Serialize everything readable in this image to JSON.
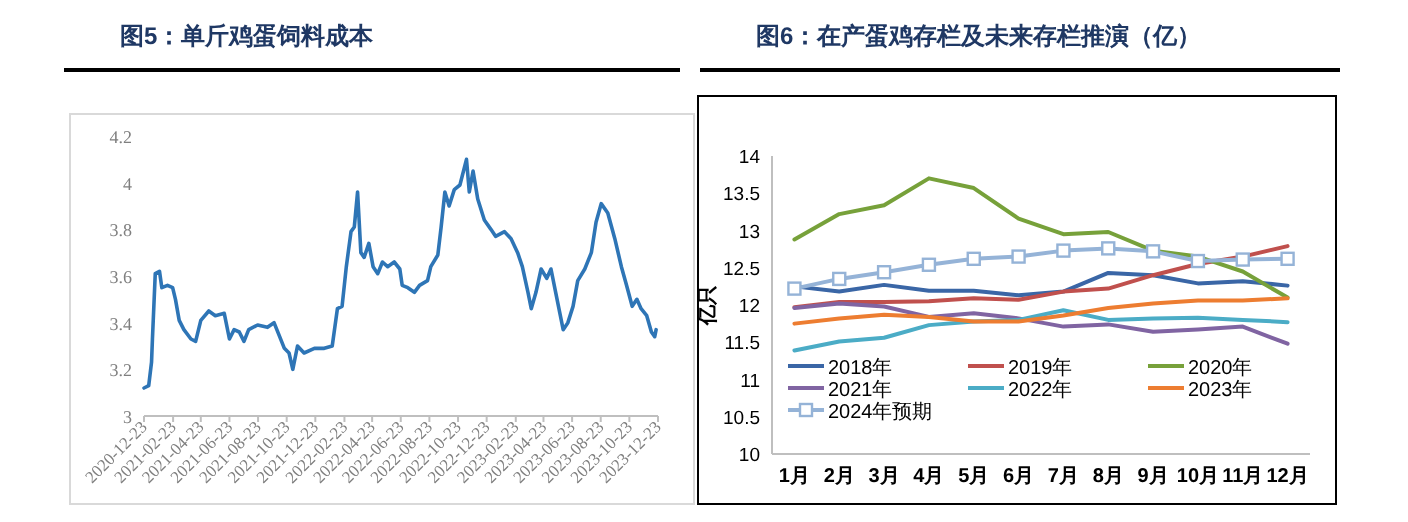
{
  "chart_data": [
    {
      "type": "line",
      "title": "图5：单斤鸡蛋饲料成本",
      "color": "#2e75b6",
      "x": [
        "2020-12-23",
        "2021-01-02",
        "2021-01-08",
        "2021-01-10",
        "2021-01-16",
        "2021-01-25",
        "2021-01-30",
        "2021-02-11",
        "2021-02-22",
        "2021-02-28",
        "2021-03-08",
        "2021-03-18",
        "2021-04-02",
        "2021-04-12",
        "2021-04-23",
        "2021-05-10",
        "2021-05-24",
        "2021-06-12",
        "2021-06-23",
        "2021-07-03",
        "2021-07-14",
        "2021-07-24",
        "2021-08-03",
        "2021-08-22",
        "2021-09-12",
        "2021-09-26",
        "2021-10-08",
        "2021-10-18",
        "2021-10-28",
        "2021-11-05",
        "2021-11-15",
        "2021-11-29",
        "2021-12-21",
        "2022-01-11",
        "2022-01-28",
        "2022-02-08",
        "2022-02-18",
        "2022-02-27",
        "2022-03-09",
        "2022-03-16",
        "2022-03-23",
        "2022-03-30",
        "2022-04-06",
        "2022-04-16",
        "2022-04-25",
        "2022-05-05",
        "2022-05-15",
        "2022-05-26",
        "2022-06-09",
        "2022-06-21",
        "2022-06-26",
        "2022-07-08",
        "2022-07-22",
        "2022-08-02",
        "2022-08-19",
        "2022-08-26",
        "2022-09-10",
        "2022-09-17",
        "2022-09-25",
        "2022-10-04",
        "2022-10-15",
        "2022-10-27",
        "2022-11-10",
        "2022-11-16",
        "2022-11-24",
        "2022-12-04",
        "2022-12-18",
        "2023-01-01",
        "2023-01-11",
        "2023-01-30",
        "2023-02-13",
        "2023-02-27",
        "2023-03-09",
        "2023-03-21",
        "2023-03-28",
        "2023-04-07",
        "2023-04-18",
        "2023-04-30",
        "2023-05-09",
        "2023-05-19",
        "2023-05-28",
        "2023-06-04",
        "2023-06-14",
        "2023-06-25",
        "2023-07-05",
        "2023-07-20",
        "2023-08-03",
        "2023-08-13",
        "2023-08-24",
        "2023-09-07",
        "2023-09-22",
        "2023-10-06",
        "2023-10-17",
        "2023-10-29",
        "2023-11-08",
        "2023-11-17",
        "2023-11-29",
        "2023-12-09",
        "2023-12-16",
        "2023-12-19"
      ],
      "values": [
        3.12,
        3.13,
        3.23,
        3.33,
        3.61,
        3.62,
        3.55,
        3.56,
        3.55,
        3.5,
        3.41,
        3.37,
        3.33,
        3.32,
        3.41,
        3.45,
        3.43,
        3.44,
        3.33,
        3.37,
        3.36,
        3.32,
        3.37,
        3.39,
        3.38,
        3.4,
        3.34,
        3.29,
        3.27,
        3.2,
        3.3,
        3.27,
        3.29,
        3.29,
        3.3,
        3.46,
        3.47,
        3.64,
        3.79,
        3.81,
        3.96,
        3.7,
        3.68,
        3.74,
        3.64,
        3.61,
        3.66,
        3.64,
        3.66,
        3.63,
        3.56,
        3.55,
        3.53,
        3.56,
        3.58,
        3.64,
        3.69,
        3.81,
        3.96,
        3.9,
        3.97,
        3.99,
        4.1,
        3.96,
        4.05,
        3.93,
        3.84,
        3.8,
        3.77,
        3.79,
        3.76,
        3.7,
        3.64,
        3.53,
        3.46,
        3.53,
        3.63,
        3.59,
        3.63,
        3.53,
        3.44,
        3.37,
        3.4,
        3.47,
        3.58,
        3.63,
        3.7,
        3.83,
        3.91,
        3.87,
        3.76,
        3.64,
        3.56,
        3.47,
        3.5,
        3.46,
        3.43,
        3.36,
        3.34,
        3.37
      ],
      "xlim": [
        "2020-12-23",
        "2023-12-23"
      ],
      "xticks": [
        "2020-12-23",
        "2021-02-23",
        "2021-04-23",
        "2021-06-23",
        "2021-08-23",
        "2021-10-23",
        "2021-12-23",
        "2022-02-23",
        "2022-04-23",
        "2022-06-23",
        "2022-08-23",
        "2022-10-23",
        "2022-12-23",
        "2023-02-23",
        "2023-04-23",
        "2023-06-23",
        "2023-08-23",
        "2023-10-23",
        "2023-12-23"
      ],
      "ylim": [
        3,
        4.2
      ],
      "yticks": [
        3,
        3.2,
        3.4,
        3.6,
        3.8,
        4,
        4.2
      ]
    },
    {
      "type": "line",
      "title": "图6：在产蛋鸡存栏及未来存栏推演（亿）",
      "ylabel": "亿只",
      "legend": "bottom left",
      "categories": [
        "1月",
        "2月",
        "3月",
        "4月",
        "5月",
        "6月",
        "7月",
        "8月",
        "9月",
        "10月",
        "11月",
        "12月"
      ],
      "series": [
        {
          "name": "2018年",
          "color": "#3a66a6",
          "values": [
            12.25,
            12.18,
            12.27,
            12.19,
            12.19,
            12.13,
            12.18,
            12.43,
            12.4,
            12.29,
            12.32,
            12.26
          ]
        },
        {
          "name": "2019年",
          "color": "#c0504d",
          "values": [
            11.97,
            12.04,
            12.04,
            12.05,
            12.09,
            12.07,
            12.18,
            12.22,
            12.4,
            12.55,
            12.65,
            12.79
          ]
        },
        {
          "name": "2020年",
          "color": "#77a13a",
          "values": [
            12.88,
            13.22,
            13.34,
            13.7,
            13.57,
            13.16,
            12.95,
            12.98,
            12.73,
            12.65,
            12.45,
            12.1
          ]
        },
        {
          "name": "2021年",
          "color": "#8064a2",
          "values": [
            11.96,
            12.02,
            11.98,
            11.84,
            11.89,
            11.82,
            11.71,
            11.74,
            11.64,
            11.67,
            11.71,
            11.48
          ]
        },
        {
          "name": "2022年",
          "color": "#4bacc6",
          "values": [
            11.39,
            11.51,
            11.56,
            11.73,
            11.78,
            11.8,
            11.93,
            11.8,
            11.82,
            11.83,
            11.8,
            11.77
          ]
        },
        {
          "name": "2023年",
          "color": "#ed7d31",
          "values": [
            11.75,
            11.82,
            11.87,
            11.84,
            11.78,
            11.78,
            11.86,
            11.96,
            12.02,
            12.06,
            12.06,
            12.09
          ]
        },
        {
          "name": "2024年预期",
          "color": "#95b3d7",
          "marker": "square",
          "values": [
            12.22,
            12.35,
            12.44,
            12.54,
            12.62,
            12.65,
            12.73,
            12.76,
            12.72,
            12.59,
            12.61,
            12.62
          ]
        }
      ],
      "ylim": [
        10,
        14
      ],
      "yticks": [
        10,
        10.5,
        11,
        11.5,
        12,
        12.5,
        13,
        13.5,
        14
      ]
    }
  ]
}
